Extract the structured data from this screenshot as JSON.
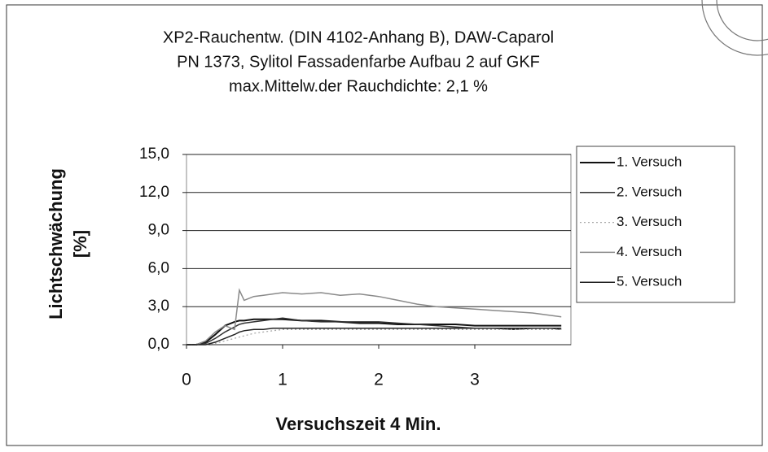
{
  "chart_data": {
    "type": "line",
    "title": [
      "XP2-Rauchentw. (DIN 4102-Anhang B), DAW-Caparol",
      "PN 1373,  Sylitol Fassadenfarbe Aufbau 2 auf GKF",
      "max.Mittelw.der Rauchdichte: 2,1 %"
    ],
    "y_label": [
      "Lichtschwächung",
      "[%]"
    ],
    "x_label": "Versuchszeit 4 Min.",
    "x": [
      0,
      0.1,
      0.2,
      0.3,
      0.4,
      0.5,
      0.55,
      0.6,
      0.7,
      0.8,
      0.9,
      1.0,
      1.2,
      1.4,
      1.6,
      1.8,
      2.0,
      2.2,
      2.4,
      2.6,
      2.8,
      3.0,
      3.2,
      3.4,
      3.6,
      3.8,
      3.9
    ],
    "series": [
      {
        "name": "1. Versuch",
        "color": "#111111",
        "values": [
          0,
          0,
          0.2,
          0.8,
          1.5,
          1.8,
          1.9,
          1.9,
          2.0,
          2.0,
          2.0,
          2.0,
          1.9,
          1.9,
          1.8,
          1.7,
          1.7,
          1.6,
          1.6,
          1.6,
          1.6,
          1.5,
          1.5,
          1.5,
          1.5,
          1.5,
          1.5
        ]
      },
      {
        "name": "2. Versuch",
        "color": "#333333",
        "values": [
          0,
          0,
          0.1,
          0.5,
          1.0,
          1.4,
          1.6,
          1.7,
          1.8,
          1.9,
          2.0,
          2.1,
          1.9,
          1.8,
          1.8,
          1.8,
          1.8,
          1.7,
          1.6,
          1.5,
          1.4,
          1.3,
          1.3,
          1.2,
          1.3,
          1.3,
          1.2
        ]
      },
      {
        "name": "3. Versuch",
        "color": "#aaaaaa",
        "values": [
          0,
          0,
          0,
          0.1,
          0.3,
          0.5,
          0.6,
          0.7,
          0.9,
          1.0,
          1.1,
          1.2,
          1.2,
          1.2,
          1.2,
          1.2,
          1.2,
          1.2,
          1.2,
          1.2,
          1.2,
          1.2,
          1.2,
          1.2,
          1.2,
          1.2,
          1.2
        ]
      },
      {
        "name": "4. Versuch",
        "color": "#8a8a8a",
        "values": [
          0,
          0,
          0.3,
          1.0,
          1.5,
          1.2,
          4.3,
          3.5,
          3.8,
          3.9,
          4.0,
          4.1,
          4.0,
          4.1,
          3.9,
          4.0,
          3.8,
          3.5,
          3.2,
          3.0,
          2.9,
          2.8,
          2.7,
          2.6,
          2.5,
          2.3,
          2.2
        ]
      },
      {
        "name": "5. Versuch",
        "color": "#222222",
        "values": [
          0,
          0,
          0,
          0.2,
          0.5,
          0.8,
          1.0,
          1.1,
          1.2,
          1.2,
          1.3,
          1.3,
          1.3,
          1.3,
          1.3,
          1.3,
          1.3,
          1.3,
          1.3,
          1.3,
          1.3,
          1.3,
          1.3,
          1.3,
          1.3,
          1.3,
          1.3
        ]
      }
    ],
    "xlim": [
      0,
      4
    ],
    "xticks": [
      0,
      1,
      2,
      3
    ],
    "ylim": [
      0,
      15
    ],
    "yticks": [
      {
        "value": 0,
        "label": "0,0"
      },
      {
        "value": 3,
        "label": "3,0"
      },
      {
        "value": 6,
        "label": "6,0"
      },
      {
        "value": 9,
        "label": "9,0"
      },
      {
        "value": 12,
        "label": "12,0"
      },
      {
        "value": 15,
        "label": "15,0"
      }
    ],
    "grid": true,
    "legend": "right"
  }
}
